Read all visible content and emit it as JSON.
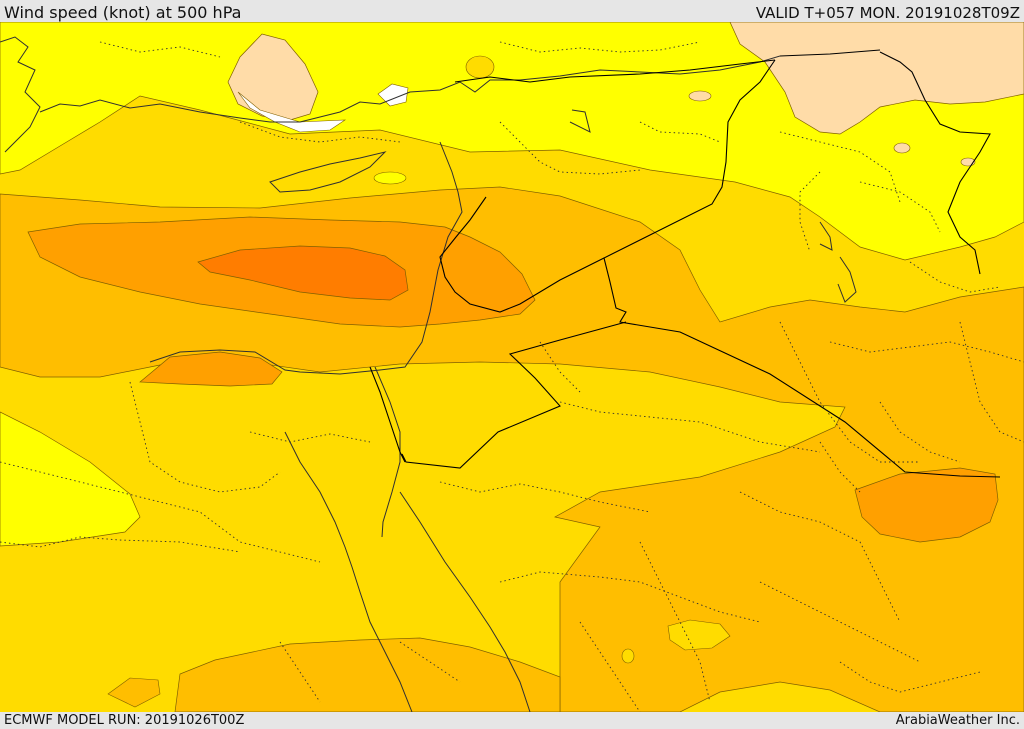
{
  "header": {
    "title": "Wind speed (knot) at 500 hPa",
    "valid": "VALID T+057 MON. 20191028T09Z"
  },
  "footer": {
    "model_run": "ECMWF MODEL RUN: 20191026T00Z",
    "credit": "ArabiaWeather Inc."
  },
  "colors": {
    "calm": "#ffffff",
    "light_band": "#ffdca8",
    "yellow": "#ffff00",
    "gold": "#ffdc00",
    "amber": "#ffbe00",
    "orange": "#ffa000",
    "dark_orange": "#ff7d00",
    "border": "#000000"
  }
}
